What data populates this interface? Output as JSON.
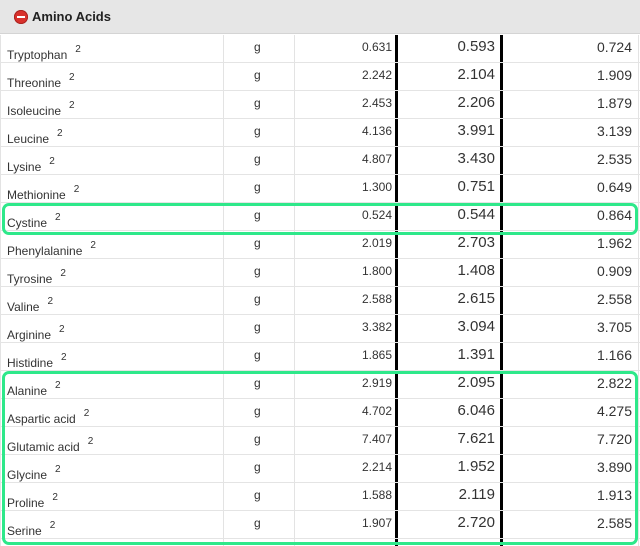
{
  "section": {
    "title": "Amino Acids",
    "toggle_icon": "collapse-icon",
    "toggle_color": "#d9312c"
  },
  "highlight_color": "#2ee88a",
  "rows": [
    {
      "name": "Tryptophan",
      "note": "2",
      "unit": "g",
      "v1": "0.631",
      "v2": "0.593",
      "v3": "0.724"
    },
    {
      "name": "Threonine",
      "note": "2",
      "unit": "g",
      "v1": "2.242",
      "v2": "2.104",
      "v3": "1.909"
    },
    {
      "name": "Isoleucine",
      "note": "2",
      "unit": "g",
      "v1": "2.453",
      "v2": "2.206",
      "v3": "1.879"
    },
    {
      "name": "Leucine",
      "note": "2",
      "unit": "g",
      "v1": "4.136",
      "v2": "3.991",
      "v3": "3.139"
    },
    {
      "name": "Lysine",
      "note": "2",
      "unit": "g",
      "v1": "4.807",
      "v2": "3.430",
      "v3": "2.535"
    },
    {
      "name": "Methionine",
      "note": "2",
      "unit": "g",
      "v1": "1.300",
      "v2": "0.751",
      "v3": "0.649"
    },
    {
      "name": "Cystine",
      "note": "2",
      "unit": "g",
      "v1": "0.524",
      "v2": "0.544",
      "v3": "0.864"
    },
    {
      "name": "Phenylalanine",
      "note": "2",
      "unit": "g",
      "v1": "2.019",
      "v2": "2.703",
      "v3": "1.962"
    },
    {
      "name": "Tyrosine",
      "note": "2",
      "unit": "g",
      "v1": "1.800",
      "v2": "1.408",
      "v3": "0.909"
    },
    {
      "name": "Valine",
      "note": "2",
      "unit": "g",
      "v1": "2.588",
      "v2": "2.615",
      "v3": "2.558"
    },
    {
      "name": "Arginine",
      "note": "2",
      "unit": "g",
      "v1": "3.382",
      "v2": "3.094",
      "v3": "3.705"
    },
    {
      "name": "Histidine",
      "note": "2",
      "unit": "g",
      "v1": "1.865",
      "v2": "1.391",
      "v3": "1.166"
    },
    {
      "name": "Alanine",
      "note": "2",
      "unit": "g",
      "v1": "2.919",
      "v2": "2.095",
      "v3": "2.822"
    },
    {
      "name": "Aspartic acid",
      "note": "2",
      "unit": "g",
      "v1": "4.702",
      "v2": "6.046",
      "v3": "4.275"
    },
    {
      "name": "Glutamic acid",
      "note": "2",
      "unit": "g",
      "v1": "7.407",
      "v2": "7.621",
      "v3": "7.720"
    },
    {
      "name": "Glycine",
      "note": "2",
      "unit": "g",
      "v1": "2.214",
      "v2": "1.952",
      "v3": "3.890"
    },
    {
      "name": "Proline",
      "note": "2",
      "unit": "g",
      "v1": "1.588",
      "v2": "2.119",
      "v3": "1.913"
    },
    {
      "name": "Serine",
      "note": "2",
      "unit": "g",
      "v1": "1.907",
      "v2": "2.720",
      "v3": "2.585"
    }
  ]
}
